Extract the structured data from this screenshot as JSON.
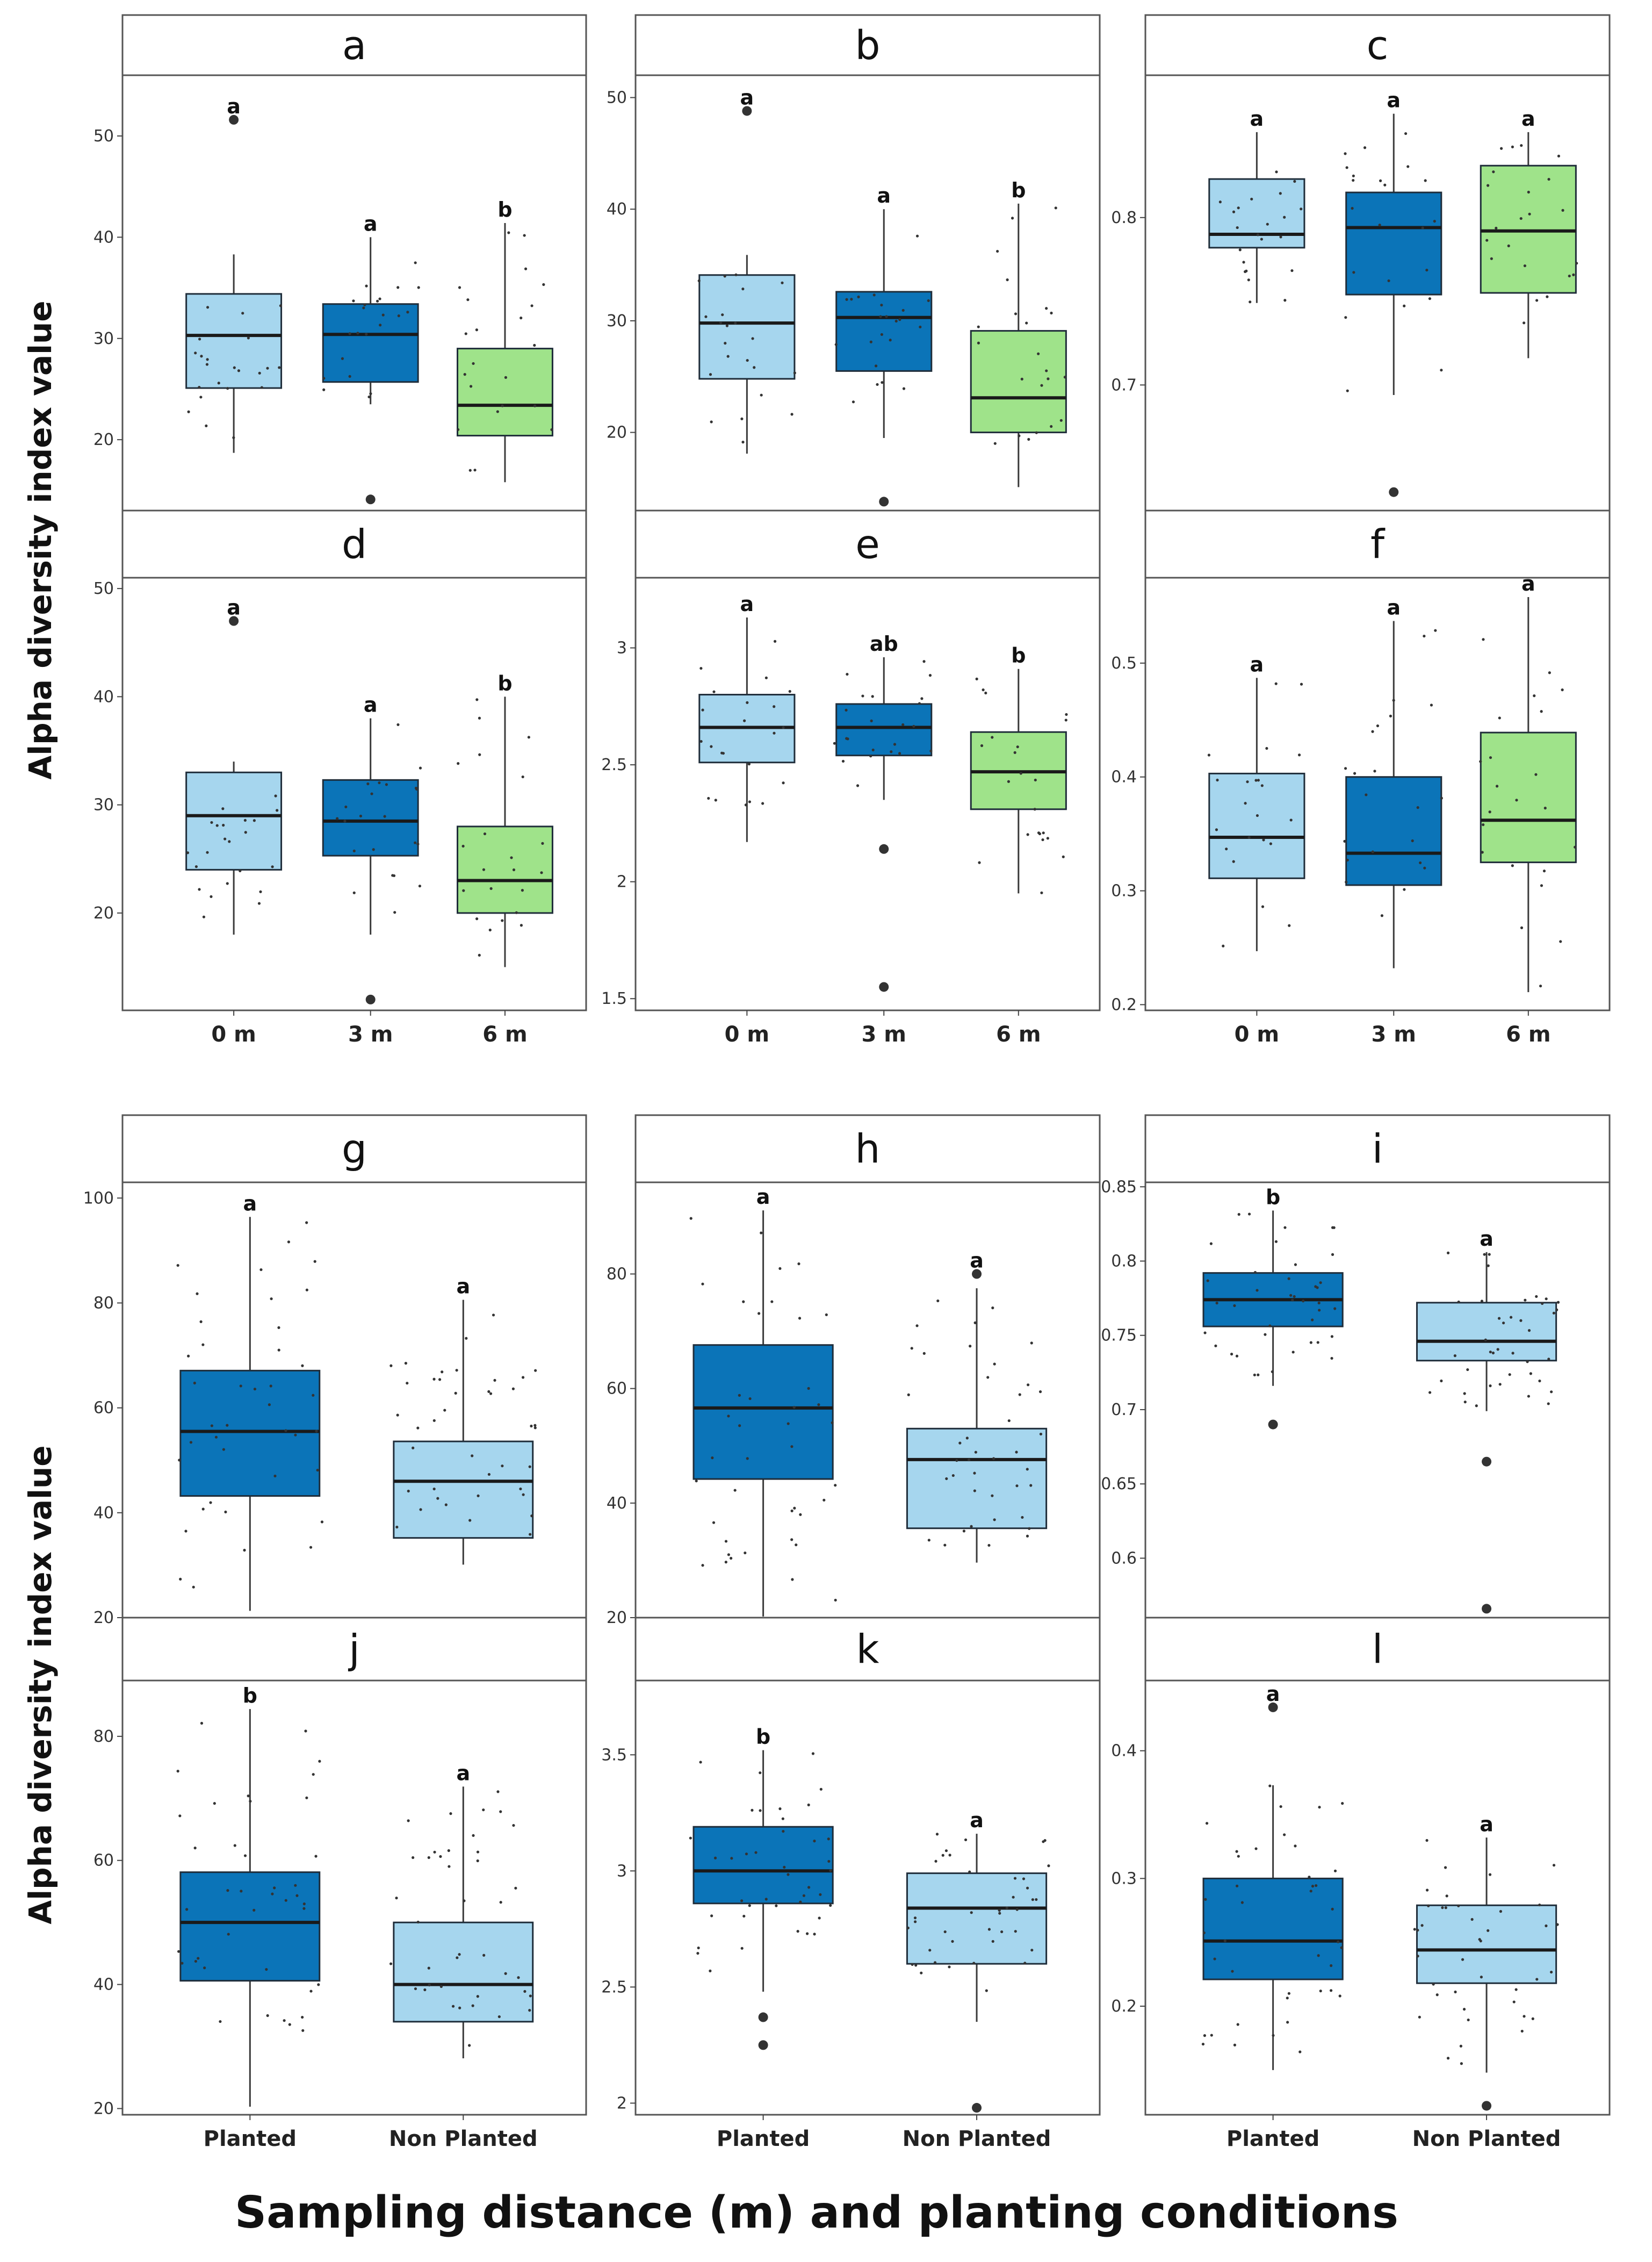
{
  "figure": {
    "ylabel": "Alpha diversity index value",
    "xlabel": "Sampling distance (m) and planting conditions"
  },
  "colors": {
    "light_blue": "#a6d6ee",
    "dark_blue": "#0b74b8",
    "green": "#9fe38a",
    "box_stroke": "#1f2d3a",
    "median": "#1a1a1a",
    "strip_fill": "#ffffff",
    "panel_border": "#555555"
  },
  "chart_data": [
    {
      "panel": "a",
      "type": "box",
      "categories": [
        "0 m",
        "3 m",
        "6 m"
      ],
      "yticks": [
        20,
        30,
        40,
        50
      ],
      "ylim": [
        13,
        56
      ],
      "boxes": [
        {
          "q1": 25.1,
          "median": 30.3,
          "q3": 34.4,
          "whisker_low": 18.7,
          "whisker_high": 38.3,
          "outliers": [
            51.6
          ],
          "letter": "a",
          "color": "light_blue"
        },
        {
          "q1": 25.7,
          "median": 30.4,
          "q3": 33.4,
          "whisker_low": 23.5,
          "whisker_high": 40.0,
          "outliers": [
            14.1
          ],
          "letter": "a",
          "color": "dark_blue"
        },
        {
          "q1": 20.4,
          "median": 23.4,
          "q3": 29.0,
          "whisker_low": 15.8,
          "whisker_high": 41.4,
          "outliers": [],
          "letter": "b",
          "color": "green"
        }
      ]
    },
    {
      "panel": "b",
      "type": "box",
      "categories": [
        "0 m",
        "3 m",
        "6 m"
      ],
      "yticks": [
        20,
        30,
        40,
        50
      ],
      "ylim": [
        13,
        52
      ],
      "boxes": [
        {
          "q1": 24.8,
          "median": 29.8,
          "q3": 34.1,
          "whisker_low": 18.1,
          "whisker_high": 35.9,
          "outliers": [
            48.8
          ],
          "letter": "a",
          "color": "light_blue"
        },
        {
          "q1": 25.5,
          "median": 30.3,
          "q3": 32.6,
          "whisker_low": 19.5,
          "whisker_high": 40.0,
          "outliers": [
            13.8
          ],
          "letter": "a",
          "color": "dark_blue"
        },
        {
          "q1": 20.0,
          "median": 23.1,
          "q3": 29.1,
          "whisker_low": 15.1,
          "whisker_high": 40.5,
          "outliers": [],
          "letter": "b",
          "color": "green"
        }
      ]
    },
    {
      "panel": "c",
      "type": "box",
      "categories": [
        "0 m",
        "3 m",
        "6 m"
      ],
      "yticks": [
        0.7,
        0.8
      ],
      "ylim": [
        0.625,
        0.885
      ],
      "boxes": [
        {
          "q1": 0.782,
          "median": 0.79,
          "q3": 0.823,
          "whisker_low": 0.749,
          "whisker_high": 0.851,
          "outliers": [],
          "letter": "a",
          "color": "light_blue"
        },
        {
          "q1": 0.754,
          "median": 0.794,
          "q3": 0.815,
          "whisker_low": 0.694,
          "whisker_high": 0.862,
          "outliers": [
            0.636
          ],
          "letter": "a",
          "color": "dark_blue"
        },
        {
          "q1": 0.755,
          "median": 0.792,
          "q3": 0.831,
          "whisker_low": 0.716,
          "whisker_high": 0.851,
          "outliers": [],
          "letter": "a",
          "color": "green"
        }
      ]
    },
    {
      "panel": "d",
      "type": "box",
      "categories": [
        "0 m",
        "3 m",
        "6 m"
      ],
      "yticks": [
        20,
        30,
        40,
        50
      ],
      "ylim": [
        11,
        51
      ],
      "boxes": [
        {
          "q1": 24.0,
          "median": 29.0,
          "q3": 33.0,
          "whisker_low": 18.0,
          "whisker_high": 34.0,
          "outliers": [
            47.0
          ],
          "letter": "a",
          "color": "light_blue"
        },
        {
          "q1": 25.3,
          "median": 28.5,
          "q3": 32.3,
          "whisker_low": 18.0,
          "whisker_high": 38.0,
          "outliers": [
            12.0
          ],
          "letter": "a",
          "color": "dark_blue"
        },
        {
          "q1": 20.0,
          "median": 23.0,
          "q3": 28.0,
          "whisker_low": 15.0,
          "whisker_high": 40.0,
          "outliers": [],
          "letter": "b",
          "color": "green"
        }
      ]
    },
    {
      "panel": "e",
      "type": "box",
      "categories": [
        "0 m",
        "3 m",
        "6 m"
      ],
      "yticks": [
        1.5,
        2.0,
        2.5,
        3.0
      ],
      "ylim": [
        1.45,
        3.3
      ],
      "boxes": [
        {
          "q1": 2.51,
          "median": 2.66,
          "q3": 2.8,
          "whisker_low": 2.17,
          "whisker_high": 3.13,
          "outliers": [],
          "letter": "a",
          "color": "light_blue"
        },
        {
          "q1": 2.54,
          "median": 2.66,
          "q3": 2.76,
          "whisker_low": 2.35,
          "whisker_high": 2.96,
          "outliers": [
            2.14,
            1.55
          ],
          "letter": "ab",
          "color": "dark_blue"
        },
        {
          "q1": 2.31,
          "median": 2.47,
          "q3": 2.64,
          "whisker_low": 1.95,
          "whisker_high": 2.91,
          "outliers": [],
          "letter": "b",
          "color": "green"
        }
      ]
    },
    {
      "panel": "f",
      "type": "box",
      "categories": [
        "0 m",
        "3 m",
        "6 m"
      ],
      "yticks": [
        0.2,
        0.3,
        0.4,
        0.5
      ],
      "ylim": [
        0.195,
        0.575
      ],
      "boxes": [
        {
          "q1": 0.311,
          "median": 0.347,
          "q3": 0.403,
          "whisker_low": 0.247,
          "whisker_high": 0.487,
          "outliers": [],
          "letter": "a",
          "color": "light_blue"
        },
        {
          "q1": 0.305,
          "median": 0.333,
          "q3": 0.4,
          "whisker_low": 0.232,
          "whisker_high": 0.537,
          "outliers": [],
          "letter": "a",
          "color": "dark_blue"
        },
        {
          "q1": 0.325,
          "median": 0.362,
          "q3": 0.439,
          "whisker_low": 0.211,
          "whisker_high": 0.558,
          "outliers": [],
          "letter": "a",
          "color": "green"
        }
      ]
    },
    {
      "panel": "g",
      "type": "box",
      "categories": [
        "Planted",
        "Non Planted"
      ],
      "yticks": [
        20,
        40,
        60,
        80,
        100
      ],
      "ylim": [
        20,
        103
      ],
      "boxes": [
        {
          "q1": 43.2,
          "median": 55.5,
          "q3": 67.1,
          "whisker_low": 21.3,
          "whisker_high": 96.4,
          "outliers": [],
          "letter": "a",
          "color": "dark_blue"
        },
        {
          "q1": 35.2,
          "median": 46.0,
          "q3": 53.6,
          "whisker_low": 30.1,
          "whisker_high": 80.6,
          "outliers": [],
          "letter": "a",
          "color": "light_blue"
        }
      ]
    },
    {
      "panel": "h",
      "type": "box",
      "categories": [
        "Planted",
        "Non Planted"
      ],
      "yticks": [
        20,
        40,
        60,
        80
      ],
      "ylim": [
        20,
        96
      ],
      "boxes": [
        {
          "q1": 44.2,
          "median": 56.6,
          "q3": 67.6,
          "whisker_low": 20.2,
          "whisker_high": 91.1,
          "outliers": [],
          "letter": "a",
          "color": "dark_blue"
        },
        {
          "q1": 35.6,
          "median": 47.6,
          "q3": 53.0,
          "whisker_low": 29.6,
          "whisker_high": 77.5,
          "outliers": [
            80.0
          ],
          "letter": "a",
          "color": "light_blue"
        }
      ]
    },
    {
      "panel": "i",
      "type": "box",
      "categories": [
        "Planted",
        "Non Planted"
      ],
      "yticks": [
        0.6,
        0.65,
        0.7,
        0.75,
        0.8,
        0.85
      ],
      "ylim": [
        0.56,
        0.853
      ],
      "boxes": [
        {
          "q1": 0.756,
          "median": 0.774,
          "q3": 0.792,
          "whisker_low": 0.716,
          "whisker_high": 0.834,
          "outliers": [
            0.69
          ],
          "letter": "b",
          "color": "dark_blue"
        },
        {
          "q1": 0.733,
          "median": 0.746,
          "q3": 0.772,
          "whisker_low": 0.699,
          "whisker_high": 0.806,
          "outliers": [
            0.665,
            0.566
          ],
          "letter": "a",
          "color": "light_blue"
        }
      ]
    },
    {
      "panel": "j",
      "type": "box",
      "categories": [
        "Planted",
        "Non Planted"
      ],
      "yticks": [
        20,
        40,
        60,
        80
      ],
      "ylim": [
        19,
        89
      ],
      "boxes": [
        {
          "q1": 40.6,
          "median": 50.0,
          "q3": 58.1,
          "whisker_low": 20.3,
          "whisker_high": 84.4,
          "outliers": [],
          "letter": "b",
          "color": "dark_blue"
        },
        {
          "q1": 34.0,
          "median": 40.0,
          "q3": 50.0,
          "whisker_low": 28.1,
          "whisker_high": 71.9,
          "outliers": [],
          "letter": "a",
          "color": "light_blue"
        }
      ]
    },
    {
      "panel": "k",
      "type": "box",
      "categories": [
        "Planted",
        "Non Planted"
      ],
      "yticks": [
        2.0,
        2.5,
        3.0,
        3.5
      ],
      "ylim": [
        1.95,
        3.82
      ],
      "boxes": [
        {
          "q1": 2.86,
          "median": 3.0,
          "q3": 3.19,
          "whisker_low": 2.48,
          "whisker_high": 3.52,
          "outliers": [
            2.37,
            2.25
          ],
          "letter": "b",
          "color": "dark_blue"
        },
        {
          "q1": 2.6,
          "median": 2.84,
          "q3": 2.99,
          "whisker_low": 2.35,
          "whisker_high": 3.16,
          "outliers": [
            1.98
          ],
          "letter": "a",
          "color": "light_blue"
        }
      ]
    },
    {
      "panel": "l",
      "type": "box",
      "categories": [
        "Planted",
        "Non Planted"
      ],
      "yticks": [
        0.2,
        0.3,
        0.4
      ],
      "ylim": [
        0.115,
        0.455
      ],
      "boxes": [
        {
          "q1": 0.221,
          "median": 0.251,
          "q3": 0.3,
          "whisker_low": 0.15,
          "whisker_high": 0.373,
          "outliers": [
            0.434
          ],
          "letter": "a",
          "color": "dark_blue"
        },
        {
          "q1": 0.218,
          "median": 0.244,
          "q3": 0.279,
          "whisker_low": 0.148,
          "whisker_high": 0.332,
          "outliers": [
            0.122
          ],
          "letter": "a",
          "color": "light_blue"
        }
      ]
    }
  ]
}
